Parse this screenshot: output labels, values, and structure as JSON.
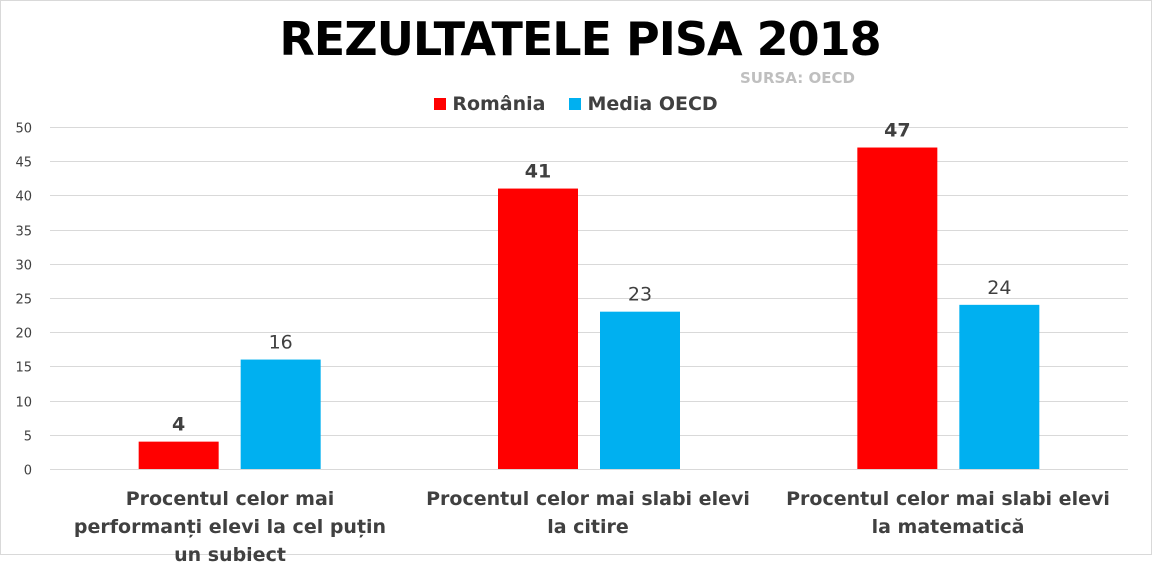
{
  "chart_data": {
    "type": "bar",
    "title": "REZULTATELE PISA 2018",
    "subtitle": "SURSA: OECD",
    "categories": [
      "Procentul celor mai performanți elevi la cel puțin un subiect",
      "Procentul celor mai slabi elevi la citire",
      "Procentul celor mai slabi elevi la matematică"
    ],
    "series": [
      {
        "name": "România",
        "color": "#ff0000",
        "values": [
          4,
          41,
          47
        ]
      },
      {
        "name": "Media OECD",
        "color": "#00b0f0",
        "values": [
          16,
          23,
          24
        ]
      }
    ],
    "ylim": [
      0,
      50
    ],
    "yticks": [
      0,
      5,
      10,
      15,
      20,
      25,
      30,
      35,
      40,
      45,
      50
    ],
    "grid": true,
    "legend_position": "top"
  }
}
